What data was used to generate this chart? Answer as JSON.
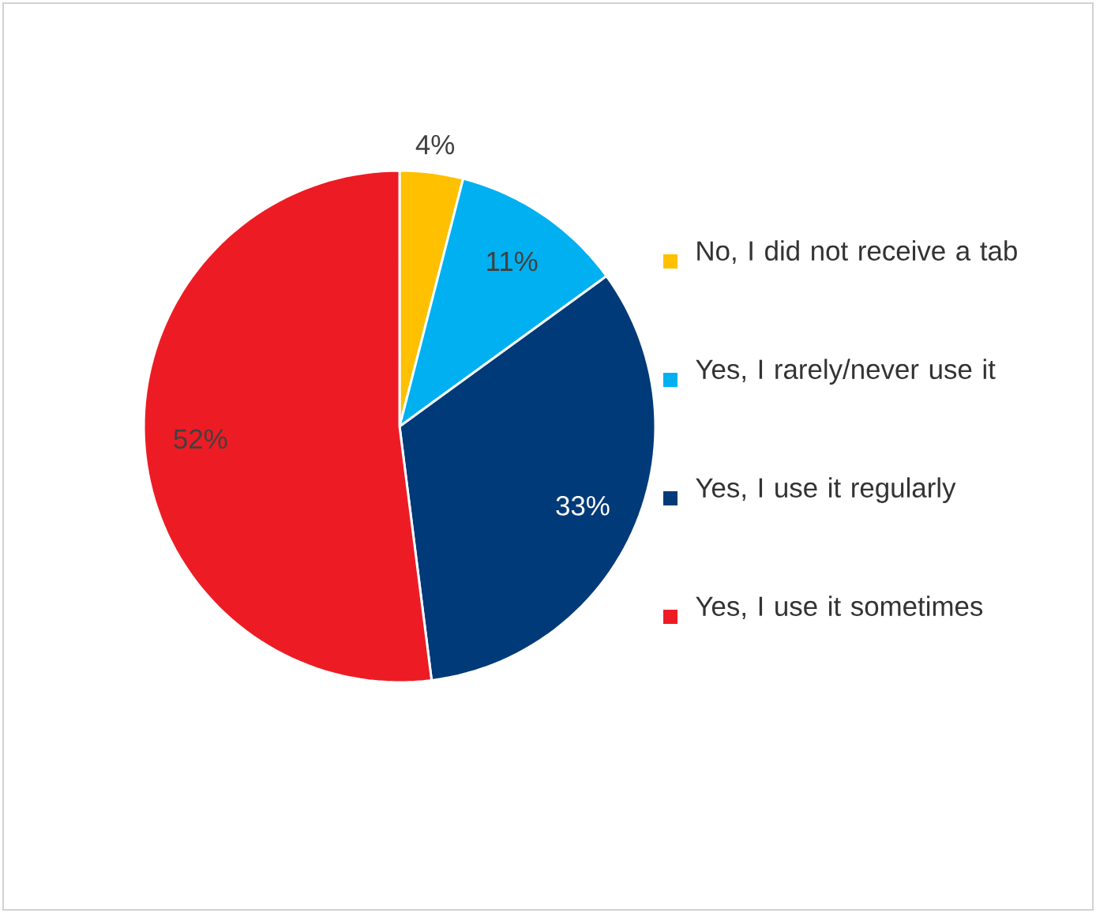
{
  "chart_data": {
    "type": "pie",
    "categories": [
      "No, I did not receive a tab",
      "Yes, I rarely/never use it",
      "Yes, I use it regularly",
      "Yes, I use it sometimes"
    ],
    "values": [
      4,
      11,
      33,
      52
    ],
    "colors": [
      "#ffc000",
      "#00b0f0",
      "#003a78",
      "#ed1c24"
    ],
    "value_labels": [
      "4%",
      "11%",
      "33%",
      "52%"
    ],
    "legend": "right"
  }
}
